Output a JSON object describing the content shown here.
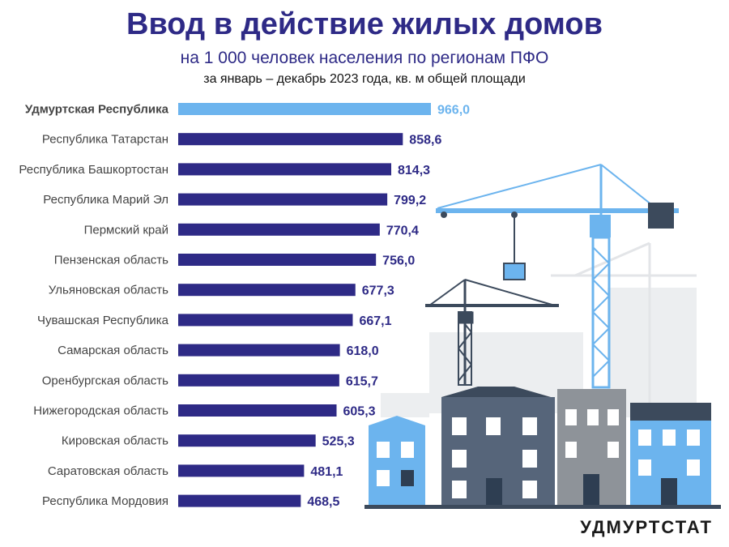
{
  "header": {
    "title": "Ввод в действие жилых домов",
    "subtitle": "на 1 000 человек населения по регионам ПФО",
    "period": "за январь – декабрь 2023 года, кв. м общей площади"
  },
  "brand": "УДМУРТСТАТ",
  "colors": {
    "bar": "#2e2a86",
    "highlight": "#6cb4ee",
    "label": "#444444",
    "title": "#2e2a86"
  },
  "chart_data": {
    "type": "bar",
    "orientation": "horizontal",
    "categories": [
      "Удмуртская Республика",
      "Республика Татарстан",
      "Республика Башкортостан",
      "Республика Марий Эл",
      "Пермский край",
      "Пензенская область",
      "Ульяновская область",
      "Чувашская Республика",
      "Самарская область",
      "Оренбургская область",
      "Нижегородская область",
      "Кировская область",
      "Саратовская область",
      "Республика Мордовия"
    ],
    "values": [
      966.0,
      858.6,
      814.3,
      799.2,
      770.4,
      756.0,
      677.3,
      667.1,
      618.0,
      615.7,
      605.3,
      525.3,
      481.1,
      468.5
    ],
    "value_labels": [
      "966,0",
      "858,6",
      "814,3",
      "799,2",
      "770,4",
      "756,0",
      "677,3",
      "667,1",
      "618,0",
      "615,7",
      "605,3",
      "525,3",
      "481,1",
      "468,5"
    ],
    "highlight_index": 0,
    "title": "Ввод в действие жилых домов",
    "xlabel": "",
    "ylabel": "",
    "xlim": [
      0,
      966
    ],
    "grid": false,
    "legend": "none"
  }
}
